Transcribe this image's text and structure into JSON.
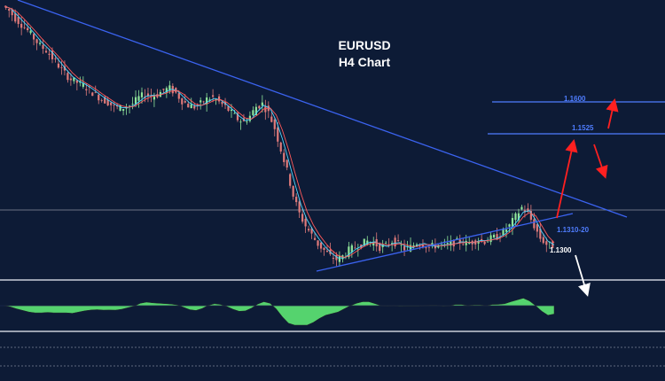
{
  "chart_data": {
    "type": "line",
    "title": "EURUSD",
    "subtitle": "H4 Chart",
    "series": [
      {
        "values": [
          1.212,
          1.2105,
          1.208,
          1.206,
          1.204,
          1.2015,
          1.199,
          1.1975,
          1.195,
          1.1925,
          1.19,
          1.188,
          1.187,
          1.186,
          1.1845,
          1.183,
          1.1815,
          1.1805,
          1.179,
          1.1785,
          1.179,
          1.18,
          1.182,
          1.183,
          1.1825,
          1.183,
          1.1845,
          1.185,
          1.1835,
          1.181,
          1.1795,
          1.179,
          1.18,
          1.1815,
          1.182,
          1.1805,
          1.179,
          1.177,
          1.175,
          1.174,
          1.176,
          1.179,
          1.18,
          1.177,
          1.172,
          1.165,
          1.158,
          1.15,
          1.144,
          1.14,
          1.137,
          1.134,
          1.132,
          1.13,
          1.129,
          1.13,
          1.132,
          1.133,
          1.134,
          1.135,
          1.1345,
          1.133,
          1.1335,
          1.135,
          1.134,
          1.1325,
          1.133,
          1.1345,
          1.134,
          1.133,
          1.1335,
          1.134,
          1.1338,
          1.1345,
          1.135,
          1.1342,
          1.1348,
          1.1355,
          1.135,
          1.1358,
          1.1365,
          1.138,
          1.14,
          1.143,
          1.146,
          1.144,
          1.14,
          1.136,
          1.134,
          1.1335
        ]
      }
    ],
    "levels": [
      {
        "label": "1.1600",
        "value": 1.16,
        "color": "#4f7dff"
      },
      {
        "label": "1.1525",
        "value": 1.1525,
        "color": "#4f7dff"
      },
      {
        "label": "1.1310-20",
        "value": 1.1315,
        "color": "#4f7dff"
      },
      {
        "label": "1.1300",
        "value": 1.13,
        "color": "#ffffff"
      }
    ],
    "ylim": [
      1.124,
      1.214
    ],
    "colors": {
      "background": "#0d1b36",
      "trendline": "#3b63f0",
      "arrow_up": "#ff2020",
      "arrow_down": "#ffffff",
      "candle_up": "#8fe59a",
      "candle_down": "#e07a7a",
      "ma_fast": "#ff5a5a",
      "ma_slow": "#4dd7ff",
      "oscillator": "#55d36e",
      "indicator_line": "#2d5cff"
    },
    "grid": false,
    "legend": "none"
  }
}
